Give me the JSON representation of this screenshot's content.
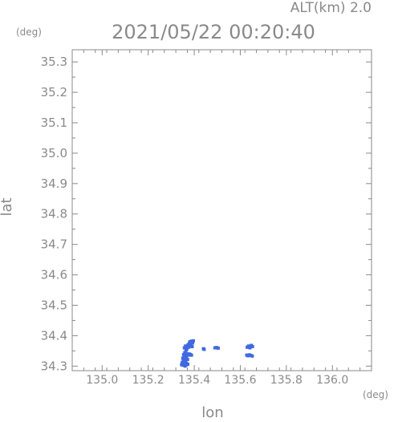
{
  "chart_data": {
    "type": "scatter",
    "title": "2021/05/22 00:20:40",
    "subtitle": "ALT(km) 2.0",
    "xlabel": "lon",
    "ylabel": "lat",
    "x_unit": "(deg)",
    "y_unit": "(deg)",
    "xlim": [
      134.87,
      136.17
    ],
    "ylim": [
      34.285,
      35.34
    ],
    "x_ticks": [
      135.0,
      135.2,
      135.4,
      135.6,
      135.8,
      136.0
    ],
    "x_tick_labels": [
      "135.0",
      "135.2",
      "135.4",
      "135.6",
      "135.8",
      "136.0"
    ],
    "y_ticks": [
      34.3,
      34.4,
      34.5,
      34.6,
      34.7,
      34.8,
      34.9,
      35.0,
      35.1,
      35.2,
      35.3
    ],
    "y_tick_labels": [
      "34.3",
      "34.4",
      "34.5",
      "34.6",
      "34.7",
      "34.8",
      "34.9",
      "35.0",
      "35.1",
      "35.2",
      "35.3"
    ],
    "grid": false,
    "point_color": "#4169e1",
    "axis_color": "#8a8a8a",
    "points": [
      {
        "x": 135.345,
        "y": 34.305
      },
      {
        "x": 135.35,
        "y": 34.303
      },
      {
        "x": 135.355,
        "y": 34.307
      },
      {
        "x": 135.36,
        "y": 34.3
      },
      {
        "x": 135.365,
        "y": 34.304
      },
      {
        "x": 135.348,
        "y": 34.312
      },
      {
        "x": 135.353,
        "y": 34.318
      },
      {
        "x": 135.358,
        "y": 34.322
      },
      {
        "x": 135.362,
        "y": 34.316
      },
      {
        "x": 135.366,
        "y": 34.31
      },
      {
        "x": 135.35,
        "y": 34.326
      },
      {
        "x": 135.356,
        "y": 34.33
      },
      {
        "x": 135.361,
        "y": 34.334
      },
      {
        "x": 135.366,
        "y": 34.328
      },
      {
        "x": 135.371,
        "y": 34.322
      },
      {
        "x": 135.354,
        "y": 34.338
      },
      {
        "x": 135.359,
        "y": 34.344
      },
      {
        "x": 135.364,
        "y": 34.35
      },
      {
        "x": 135.369,
        "y": 34.34
      },
      {
        "x": 135.374,
        "y": 34.336
      },
      {
        "x": 135.378,
        "y": 34.34
      },
      {
        "x": 135.383,
        "y": 34.338
      },
      {
        "x": 135.388,
        "y": 34.336
      },
      {
        "x": 135.372,
        "y": 34.306
      },
      {
        "x": 135.368,
        "y": 34.356
      },
      {
        "x": 135.371,
        "y": 34.363
      },
      {
        "x": 135.373,
        "y": 34.37
      },
      {
        "x": 135.376,
        "y": 34.362
      },
      {
        "x": 135.378,
        "y": 34.374
      },
      {
        "x": 135.381,
        "y": 34.38
      },
      {
        "x": 135.383,
        "y": 34.366
      },
      {
        "x": 135.386,
        "y": 34.372
      },
      {
        "x": 135.388,
        "y": 34.382
      },
      {
        "x": 135.391,
        "y": 34.364
      },
      {
        "x": 135.393,
        "y": 34.376
      },
      {
        "x": 135.396,
        "y": 34.383
      },
      {
        "x": 135.357,
        "y": 34.36
      },
      {
        "x": 135.362,
        "y": 34.366
      },
      {
        "x": 135.44,
        "y": 34.357
      },
      {
        "x": 135.443,
        "y": 34.355
      },
      {
        "x": 135.49,
        "y": 34.36
      },
      {
        "x": 135.497,
        "y": 34.361
      },
      {
        "x": 135.504,
        "y": 34.359
      },
      {
        "x": 135.628,
        "y": 34.336
      },
      {
        "x": 135.634,
        "y": 34.334
      },
      {
        "x": 135.64,
        "y": 34.337
      },
      {
        "x": 135.646,
        "y": 34.335
      },
      {
        "x": 135.652,
        "y": 34.333
      },
      {
        "x": 135.63,
        "y": 34.362
      },
      {
        "x": 135.636,
        "y": 34.366
      },
      {
        "x": 135.642,
        "y": 34.36
      },
      {
        "x": 135.648,
        "y": 34.368
      },
      {
        "x": 135.653,
        "y": 34.364
      }
    ]
  }
}
